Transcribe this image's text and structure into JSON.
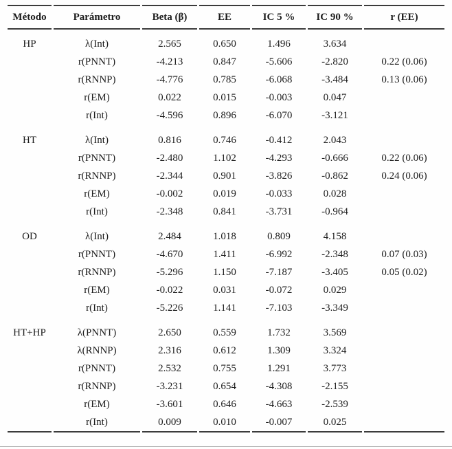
{
  "colors": {
    "rule_dark": "#3b3b3b",
    "rule_light": "#b1b1b1",
    "text": "#1c1c1c",
    "background": "#fefefe"
  },
  "table": {
    "columns": [
      "Método",
      "Parámetro",
      "Beta (β)",
      "EE",
      "IC 5 %",
      "IC 90 %",
      "r (EE)"
    ],
    "groups": [
      {
        "method": "HP",
        "rows": [
          {
            "param": "λ(Int)",
            "beta": "2.565",
            "ee": "0.650",
            "ic5": "1.496",
            "ic90": "3.634",
            "r_ee": ""
          },
          {
            "param": "r(PNNT)",
            "beta": "-4.213",
            "ee": "0.847",
            "ic5": "-5.606",
            "ic90": "-2.820",
            "r_ee": "0.22 (0.06)"
          },
          {
            "param": "r(RNNP)",
            "beta": "-4.776",
            "ee": "0.785",
            "ic5": "-6.068",
            "ic90": "-3.484",
            "r_ee": "0.13 (0.06)"
          },
          {
            "param": "r(EM)",
            "beta": "0.022",
            "ee": "0.015",
            "ic5": "-0.003",
            "ic90": "0.047",
            "r_ee": ""
          },
          {
            "param": "r(Int)",
            "beta": "-4.596",
            "ee": "0.896",
            "ic5": "-6.070",
            "ic90": "-3.121",
            "r_ee": ""
          }
        ]
      },
      {
        "method": "HT",
        "rows": [
          {
            "param": "λ(Int)",
            "beta": "0.816",
            "ee": "0.746",
            "ic5": "-0.412",
            "ic90": "2.043",
            "r_ee": ""
          },
          {
            "param": "r(PNNT)",
            "beta": "-2.480",
            "ee": "1.102",
            "ic5": "-4.293",
            "ic90": "-0.666",
            "r_ee": "0.22 (0.06)"
          },
          {
            "param": "r(RNNP)",
            "beta": "-2.344",
            "ee": "0.901",
            "ic5": "-3.826",
            "ic90": "-0.862",
            "r_ee": "0.24 (0.06)"
          },
          {
            "param": "r(EM)",
            "beta": "-0.002",
            "ee": "0.019",
            "ic5": "-0.033",
            "ic90": "0.028",
            "r_ee": ""
          },
          {
            "param": "r(Int)",
            "beta": "-2.348",
            "ee": "0.841",
            "ic5": "-3.731",
            "ic90": "-0.964",
            "r_ee": ""
          }
        ]
      },
      {
        "method": "OD",
        "rows": [
          {
            "param": "λ(Int)",
            "beta": "2.484",
            "ee": "1.018",
            "ic5": "0.809",
            "ic90": "4.158",
            "r_ee": ""
          },
          {
            "param": "r(PNNT)",
            "beta": "-4.670",
            "ee": "1.411",
            "ic5": "-6.992",
            "ic90": "-2.348",
            "r_ee": "0.07 (0.03)"
          },
          {
            "param": "r(RNNP)",
            "beta": "-5.296",
            "ee": "1.150",
            "ic5": "-7.187",
            "ic90": "-3.405",
            "r_ee": "0.05 (0.02)"
          },
          {
            "param": "r(EM)",
            "beta": "-0.022",
            "ee": "0.031",
            "ic5": "-0.072",
            "ic90": "0.029",
            "r_ee": ""
          },
          {
            "param": "r(Int)",
            "beta": "-5.226",
            "ee": "1.141",
            "ic5": "-7.103",
            "ic90": "-3.349",
            "r_ee": ""
          }
        ]
      },
      {
        "method": "HT+HP",
        "rows": [
          {
            "param": "λ(PNNT)",
            "beta": "2.650",
            "ee": "0.559",
            "ic5": "1.732",
            "ic90": "3.569",
            "r_ee": ""
          },
          {
            "param": "λ(RNNP)",
            "beta": "2.316",
            "ee": "0.612",
            "ic5": "1.309",
            "ic90": "3.324",
            "r_ee": ""
          },
          {
            "param": "r(PNNT)",
            "beta": "2.532",
            "ee": "0.755",
            "ic5": "1.291",
            "ic90": "3.773",
            "r_ee": ""
          },
          {
            "param": "r(RNNP)",
            "beta": "-3.231",
            "ee": "0.654",
            "ic5": "-4.308",
            "ic90": "-2.155",
            "r_ee": ""
          },
          {
            "param": "r(EM)",
            "beta": "-3.601",
            "ee": "0.646",
            "ic5": "-4.663",
            "ic90": "-2.539",
            "r_ee": ""
          },
          {
            "param": "r(Int)",
            "beta": "0.009",
            "ee": "0.010",
            "ic5": "-0.007",
            "ic90": "0.025",
            "r_ee": ""
          }
        ]
      }
    ]
  }
}
